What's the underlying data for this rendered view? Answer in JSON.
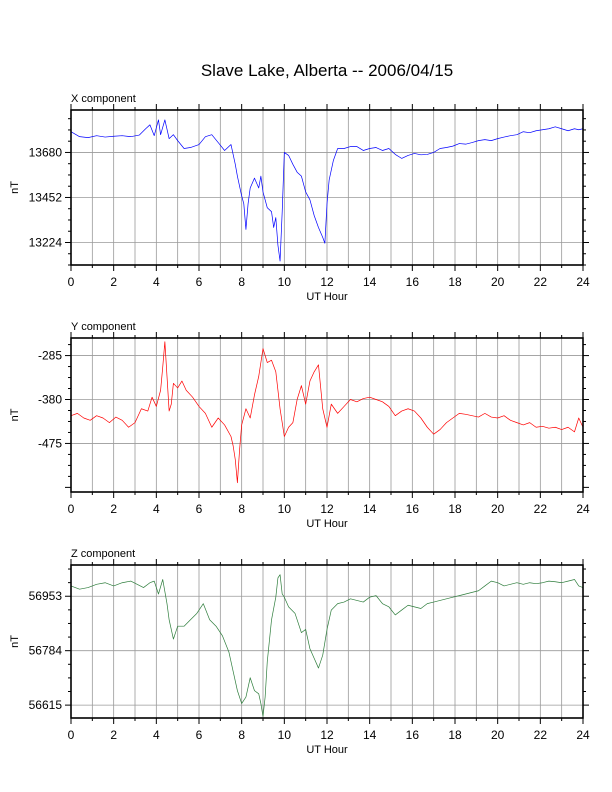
{
  "page": {
    "title": "Slave Lake, Alberta -- 2006/04/15"
  },
  "chart_data": [
    {
      "type": "line",
      "panel_label": "X component",
      "xlabel": "UT Hour",
      "ylabel": "nT",
      "xlim": [
        0,
        24
      ],
      "ylim": [
        13110,
        13895
      ],
      "x_ticks": [
        0,
        2,
        4,
        6,
        8,
        10,
        12,
        14,
        16,
        18,
        20,
        22,
        24
      ],
      "y_ticks": [
        13224,
        13452,
        13680
      ],
      "grid": true,
      "series": [
        {
          "color": "#0000ff",
          "x": [
            0,
            0.4,
            0.8,
            1.2,
            1.6,
            2,
            2.4,
            2.8,
            3.2,
            3.5,
            3.7,
            3.9,
            4.1,
            4.2,
            4.4,
            4.6,
            4.8,
            5,
            5.3,
            5.6,
            6,
            6.3,
            6.6,
            6.9,
            7.2,
            7.5,
            7.7,
            7.8,
            8,
            8.1,
            8.2,
            8.3,
            8.4,
            8.6,
            8.8,
            8.9,
            9,
            9.2,
            9.4,
            9.5,
            9.6,
            9.7,
            9.8,
            9.9,
            10,
            10.2,
            10.4,
            10.6,
            10.8,
            11,
            11.2,
            11.4,
            11.6,
            11.8,
            11.9,
            12,
            12.1,
            12.3,
            12.5,
            12.8,
            13.1,
            13.4,
            13.7,
            14,
            14.3,
            14.6,
            14.9,
            15.2,
            15.5,
            15.8,
            16.1,
            16.4,
            16.7,
            17,
            17.3,
            17.6,
            17.9,
            18.2,
            18.5,
            18.8,
            19.1,
            19.4,
            19.7,
            20,
            20.3,
            20.6,
            20.9,
            21.2,
            21.5,
            21.8,
            22.1,
            22.4,
            22.7,
            23,
            23.3,
            23.6,
            23.8,
            24
          ],
          "values": [
            13785,
            13760,
            13755,
            13765,
            13758,
            13762,
            13765,
            13760,
            13768,
            13800,
            13820,
            13765,
            13845,
            13770,
            13845,
            13750,
            13770,
            13740,
            13700,
            13705,
            13720,
            13760,
            13770,
            13730,
            13690,
            13720,
            13620,
            13560,
            13460,
            13420,
            13290,
            13420,
            13500,
            13550,
            13500,
            13560,
            13480,
            13400,
            13380,
            13300,
            13350,
            13210,
            13130,
            13380,
            13680,
            13665,
            13620,
            13580,
            13560,
            13480,
            13440,
            13360,
            13300,
            13250,
            13220,
            13420,
            13540,
            13640,
            13700,
            13700,
            13710,
            13710,
            13690,
            13700,
            13705,
            13690,
            13700,
            13670,
            13650,
            13665,
            13675,
            13668,
            13670,
            13680,
            13700,
            13705,
            13712,
            13725,
            13722,
            13730,
            13740,
            13745,
            13740,
            13750,
            13758,
            13765,
            13770,
            13785,
            13780,
            13790,
            13795,
            13800,
            13810,
            13800,
            13790,
            13800,
            13795,
            13800
          ]
        }
      ]
    },
    {
      "type": "line",
      "panel_label": "Y component",
      "xlabel": "UT Hour",
      "ylabel": "nT",
      "xlim": [
        0,
        24
      ],
      "ylim": [
        -580,
        -247
      ],
      "x_ticks": [
        0,
        2,
        4,
        6,
        8,
        10,
        12,
        14,
        16,
        18,
        20,
        22,
        24
      ],
      "y_ticks": [
        -285,
        -380,
        -475
      ],
      "grid": true,
      "series": [
        {
          "color": "#ff0000",
          "x": [
            0,
            0.3,
            0.6,
            0.9,
            1.2,
            1.5,
            1.8,
            2.1,
            2.4,
            2.7,
            3,
            3.3,
            3.6,
            3.8,
            4,
            4.2,
            4.3,
            4.4,
            4.5,
            4.6,
            4.7,
            4.8,
            5,
            5.2,
            5.4,
            5.7,
            6,
            6.3,
            6.6,
            6.9,
            7.2,
            7.5,
            7.6,
            7.7,
            7.8,
            7.9,
            8,
            8.2,
            8.4,
            8.6,
            8.8,
            9,
            9.2,
            9.4,
            9.6,
            9.8,
            10,
            10.2,
            10.4,
            10.6,
            10.8,
            11,
            11.2,
            11.4,
            11.6,
            11.8,
            12,
            12.2,
            12.5,
            12.8,
            13.1,
            13.4,
            13.7,
            14,
            14.3,
            14.6,
            14.9,
            15.2,
            15.5,
            15.8,
            16.1,
            16.4,
            16.7,
            17,
            17.3,
            17.6,
            17.9,
            18.2,
            18.5,
            18.8,
            19.1,
            19.4,
            19.7,
            20,
            20.3,
            20.6,
            20.9,
            21.2,
            21.5,
            21.8,
            22.1,
            22.4,
            22.7,
            23,
            23.3,
            23.6,
            23.8,
            24
          ],
          "values": [
            -415,
            -410,
            -420,
            -425,
            -415,
            -420,
            -430,
            -418,
            -425,
            -440,
            -430,
            -400,
            -405,
            -375,
            -395,
            -360,
            -310,
            -255,
            -330,
            -405,
            -390,
            -345,
            -355,
            -340,
            -360,
            -375,
            -395,
            -410,
            -440,
            -420,
            -435,
            -460,
            -480,
            -510,
            -560,
            -490,
            -435,
            -400,
            -420,
            -370,
            -330,
            -270,
            -300,
            -295,
            -320,
            -400,
            -460,
            -440,
            -430,
            -380,
            -350,
            -390,
            -340,
            -320,
            -305,
            -400,
            -440,
            -390,
            -410,
            -395,
            -380,
            -385,
            -378,
            -375,
            -380,
            -385,
            -395,
            -415,
            -405,
            -400,
            -405,
            -420,
            -440,
            -455,
            -445,
            -430,
            -420,
            -410,
            -412,
            -415,
            -418,
            -410,
            -418,
            -420,
            -415,
            -425,
            -430,
            -435,
            -430,
            -440,
            -438,
            -442,
            -440,
            -445,
            -440,
            -450,
            -420,
            -440
          ]
        }
      ]
    },
    {
      "type": "line",
      "panel_label": "Z component",
      "xlabel": "UT Hour",
      "ylabel": "nT",
      "xlim": [
        0,
        24
      ],
      "ylim": [
        56575,
        57050
      ],
      "x_ticks": [
        0,
        2,
        4,
        6,
        8,
        10,
        12,
        14,
        16,
        18,
        20,
        22,
        24
      ],
      "y_ticks": [
        56615,
        56784,
        56953
      ],
      "grid": true,
      "series": [
        {
          "color": "#2e7d3c",
          "x": [
            0,
            0.4,
            0.8,
            1.2,
            1.6,
            2,
            2.4,
            2.8,
            3.1,
            3.4,
            3.7,
            3.9,
            4.1,
            4.3,
            4.5,
            4.6,
            4.8,
            5,
            5.3,
            5.6,
            5.9,
            6.2,
            6.5,
            6.8,
            7.1,
            7.4,
            7.6,
            7.8,
            8,
            8.2,
            8.4,
            8.6,
            8.8,
            8.9,
            9,
            9.1,
            9.2,
            9.4,
            9.6,
            9.7,
            9.8,
            9.9,
            10,
            10.2,
            10.5,
            10.8,
            11,
            11.2,
            11.4,
            11.6,
            11.8,
            12,
            12.2,
            12.5,
            12.8,
            13.1,
            13.4,
            13.7,
            14,
            14.3,
            14.6,
            14.9,
            15.2,
            15.5,
            15.8,
            16.1,
            16.4,
            16.7,
            17,
            17.3,
            17.6,
            17.9,
            18.2,
            18.5,
            18.8,
            19.1,
            19.4,
            19.7,
            20,
            20.3,
            20.6,
            20.9,
            21.2,
            21.5,
            21.8,
            22.1,
            22.4,
            22.7,
            23,
            23.3,
            23.6,
            23.8,
            24
          ],
          "values": [
            56985,
            56975,
            56980,
            56990,
            56995,
            56985,
            56995,
            57000,
            56990,
            56980,
            56995,
            57000,
            56960,
            57005,
            56930,
            56880,
            56820,
            56860,
            56860,
            56880,
            56900,
            56930,
            56880,
            56860,
            56830,
            56780,
            56720,
            56660,
            56620,
            56640,
            56700,
            56660,
            56650,
            56620,
            56580,
            56640,
            56750,
            56880,
            56950,
            57010,
            57020,
            56960,
            56950,
            56920,
            56900,
            56840,
            56850,
            56790,
            56760,
            56730,
            56770,
            56850,
            56910,
            56930,
            56935,
            56945,
            56940,
            56935,
            56950,
            56955,
            56930,
            56920,
            56895,
            56910,
            56925,
            56920,
            56915,
            56930,
            56935,
            56940,
            56945,
            56950,
            56955,
            56960,
            56965,
            56970,
            56985,
            57000,
            56995,
            56985,
            56990,
            56995,
            56990,
            56995,
            56992,
            56995,
            57000,
            56998,
            56995,
            57000,
            57005,
            56985,
            56980
          ]
        }
      ]
    }
  ]
}
